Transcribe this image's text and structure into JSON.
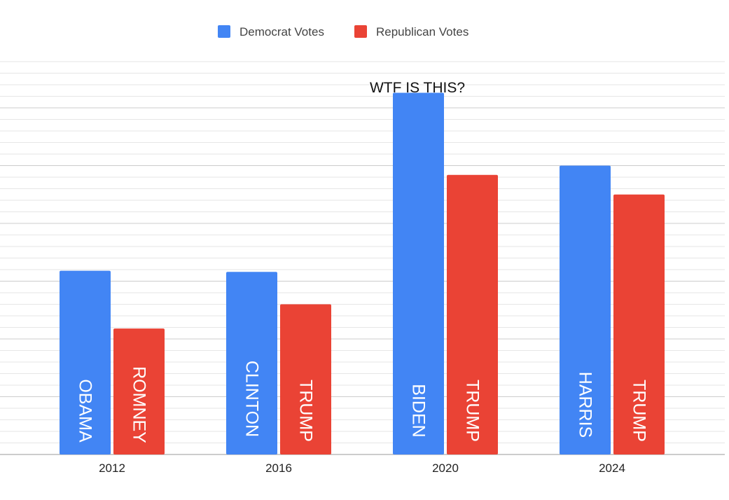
{
  "chart_data": {
    "type": "bar",
    "categories": [
      "2012",
      "2016",
      "2020",
      "2024"
    ],
    "series": [
      {
        "name": "Democrat Votes",
        "color": "#4285f4",
        "values": [
          65.9,
          65.8,
          81.3,
          75.0
        ],
        "bar_labels": [
          "OBAMA",
          "CLINTON",
          "BIDEN",
          "HARRIS"
        ]
      },
      {
        "name": "Republican Votes",
        "color": "#ea4335",
        "values": [
          60.9,
          63.0,
          74.2,
          72.5
        ],
        "bar_labels": [
          "ROMNEY",
          "TRUMP",
          "TRUMP",
          "TRUMP"
        ]
      }
    ],
    "annotations": [
      {
        "text": "WTF IS THIS?",
        "category": "2020"
      }
    ],
    "title": "",
    "xlabel": "",
    "ylabel": "",
    "ylim": [
      50,
      84
    ],
    "grid": true,
    "legend": "top-center",
    "y_tick_labels_shown": false
  }
}
